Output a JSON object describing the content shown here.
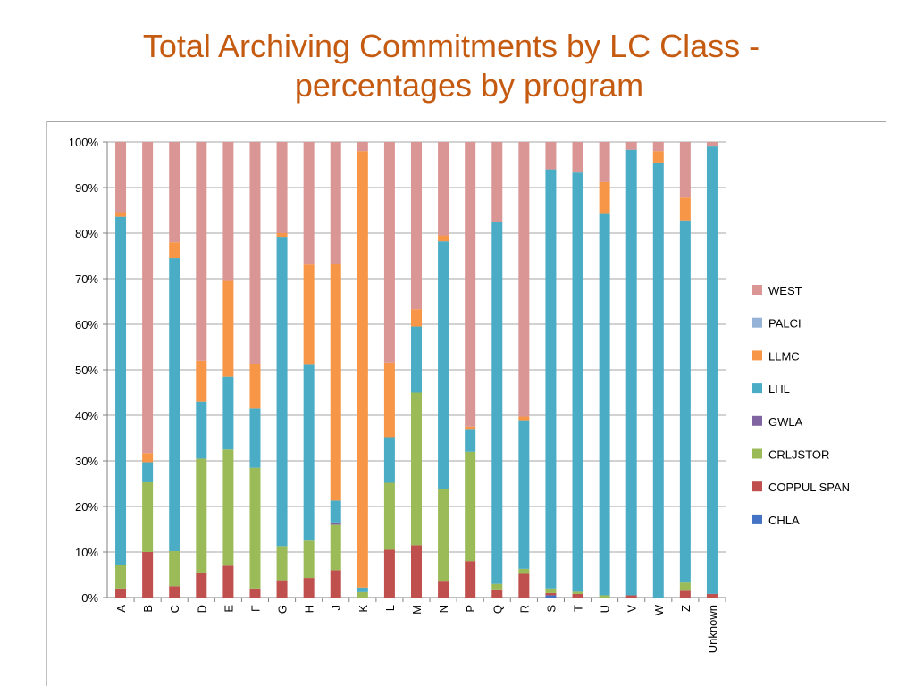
{
  "title_line1": "Total Archiving Commitments by LC Class -",
  "title_line2": "percentages by program",
  "chart_data": {
    "type": "bar",
    "stacked": true,
    "categories": [
      "A",
      "B",
      "C",
      "D",
      "E",
      "F",
      "G",
      "H",
      "J",
      "K",
      "L",
      "M",
      "N",
      "P",
      "Q",
      "R",
      "S",
      "T",
      "U",
      "V",
      "W",
      "Z",
      "Unknown"
    ],
    "ylim": [
      0,
      100
    ],
    "yticks": [
      "0%",
      "10%",
      "20%",
      "30%",
      "40%",
      "50%",
      "60%",
      "70%",
      "80%",
      "90%",
      "100%"
    ],
    "legend_position": "right",
    "series": [
      {
        "name": "CHLA",
        "color": "#4472c4",
        "values": [
          0,
          0,
          0,
          0,
          0,
          0,
          0,
          0,
          0,
          0,
          0,
          0,
          0,
          0,
          0,
          0,
          0.5,
          0,
          0,
          0,
          0,
          0,
          0
        ]
      },
      {
        "name": "COPPUL SPAN",
        "color": "#c0504d",
        "values": [
          2,
          10,
          2.5,
          5.5,
          7,
          2,
          3.8,
          4.3,
          6,
          0,
          10.5,
          11.5,
          3.5,
          8,
          1.8,
          5.2,
          0.5,
          0.8,
          0,
          0.5,
          0,
          1.5,
          0.8
        ]
      },
      {
        "name": "CRLJSTOR",
        "color": "#9bbb59",
        "values": [
          5.2,
          15.3,
          7.7,
          25,
          25.5,
          26.5,
          7.5,
          8.2,
          10,
          1.2,
          14.7,
          33.5,
          20.3,
          24,
          1.2,
          1.1,
          1,
          0.5,
          0.5,
          0,
          0,
          1.8,
          0
        ]
      },
      {
        "name": "GWLA",
        "color": "#8064a2",
        "values": [
          0,
          0,
          0,
          0,
          0,
          0,
          0,
          0,
          0.5,
          0,
          0,
          0,
          0,
          0,
          0,
          0,
          0,
          0,
          0,
          0,
          0,
          0,
          0
        ]
      },
      {
        "name": "LHL",
        "color": "#4bacc6",
        "values": [
          76.4,
          4.4,
          64.3,
          12.5,
          16,
          13,
          67.9,
          38.6,
          4.8,
          1,
          10,
          14.5,
          54.4,
          5,
          79.4,
          32.6,
          92,
          92,
          83.7,
          97.8,
          95.5,
          79.5,
          98.2
        ]
      },
      {
        "name": "LLMC",
        "color": "#f79646",
        "values": [
          1,
          2,
          3.5,
          9,
          21,
          9.8,
          0.8,
          22,
          51.9,
          95.8,
          16.4,
          3.8,
          1.3,
          0.5,
          0,
          0.8,
          0,
          0,
          7,
          0,
          2.5,
          5,
          0
        ]
      },
      {
        "name": "PALCI",
        "color": "#95b3d7",
        "values": [
          0,
          0,
          0,
          0,
          0,
          0,
          0,
          0,
          0,
          0,
          0,
          0,
          0,
          0,
          0,
          0,
          0,
          0,
          0,
          0,
          0,
          0,
          0
        ]
      },
      {
        "name": "WEST",
        "color": "#d99694",
        "values": [
          15.4,
          68.3,
          22,
          48,
          30.5,
          48.7,
          20,
          26.9,
          26.8,
          2,
          48.4,
          36.7,
          20.5,
          62.5,
          17.6,
          60.3,
          6,
          6.7,
          8.8,
          1.7,
          2,
          12.2,
          1
        ]
      }
    ],
    "legend_order": [
      "WEST",
      "PALCI",
      "LLMC",
      "LHL",
      "GWLA",
      "CRLJSTOR",
      "COPPUL SPAN",
      "CHLA"
    ]
  }
}
